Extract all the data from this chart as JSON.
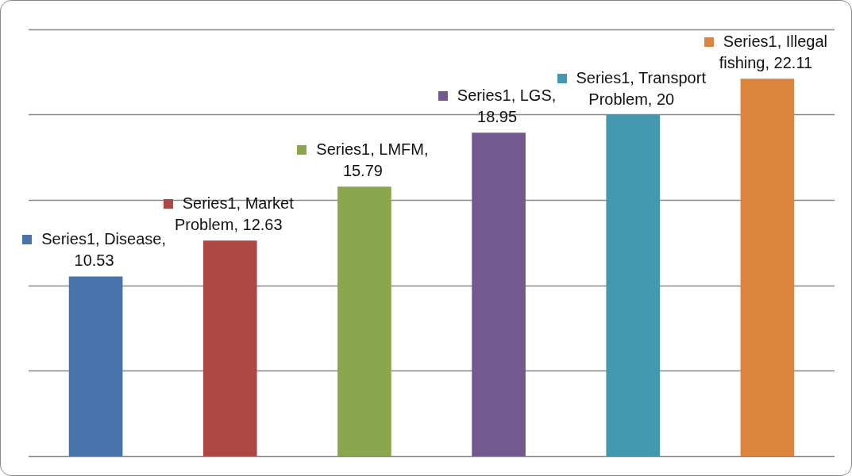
{
  "chart_data": {
    "type": "bar",
    "categories": [
      null,
      null,
      null,
      null,
      null,
      null
    ],
    "series": [
      {
        "values": [
          10.53,
          12.63,
          15.79,
          18.95,
          20,
          22.11
        ],
        "colors": [
          "#4674aa",
          "#ab4744",
          "#8aa64e",
          "#725a8e",
          "#4298ae",
          "#db843d"
        ],
        "value_labels": [
          "Series1, Disease, 10.53",
          "Series1, Market Problem, 12.63",
          "Series1, LMFM, 15.79",
          "Series1, LGS, 18.95",
          "Series1, Transport Problem, 20",
          "Series1, Illegal fishing, 22.11"
        ]
      }
    ],
    "ylim": [
      0,
      25
    ],
    "yticks": [
      {
        "value": 0,
        "label": null
      },
      {
        "value": 5,
        "label": null
      },
      {
        "value": 10,
        "label": null
      },
      {
        "value": 15,
        "label": null
      },
      {
        "value": 20,
        "label": null
      },
      {
        "value": 25,
        "label": null
      }
    ],
    "grid": "y"
  }
}
